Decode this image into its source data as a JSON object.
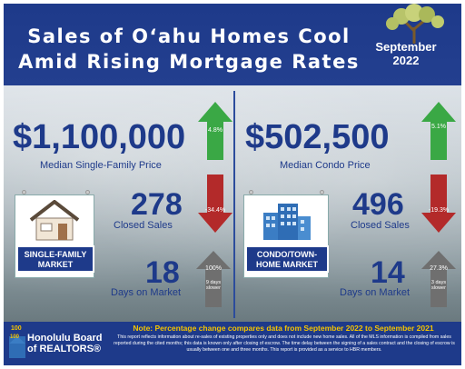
{
  "header": {
    "title_line1": "Sales of O‘ahu Homes Cool",
    "title_line2": "Amid Rising Mortgage Rates",
    "month": "September",
    "year": "2022"
  },
  "single_family": {
    "median_price": "$1,100,000",
    "median_label": "Median Single-Family Price",
    "price_change": "4.8%",
    "closed_sales": "278",
    "closed_label": "Closed Sales",
    "sales_change": "-34.4%",
    "dom": "18",
    "dom_label": "Days on Market",
    "dom_change": "100%",
    "dom_note": "9 days slower",
    "tag_line1": "SINGLE-FAMILY",
    "tag_line2": "MARKET"
  },
  "condo": {
    "median_price": "$502,500",
    "median_label": "Median Condo Price",
    "price_change": "5.1%",
    "closed_sales": "496",
    "closed_label": "Closed Sales",
    "sales_change": "-19.3%",
    "dom": "14",
    "dom_label": "Days on Market",
    "dom_change": "27.3%",
    "dom_note": "3 days slower",
    "tag_line1": "CONDO/TOWN-",
    "tag_line2": "HOME MARKET"
  },
  "footer": {
    "note": "Note: Percentage change compares data from September 2022 to September 2021",
    "fine_print": "This report reflects information about re-sales of existing properties only and does not include new home sales. All of the MLS information is compiled from sales reported during the cited months; this data is known only after closing of escrow. The time delay between the signing of a sales contract and the closing of escrow is usually between one and three months. This report is provided as a service to HBR members.",
    "logo_line1": "Honolulu Board",
    "logo_line2": "of REALTORS®",
    "logo_badge": "100"
  },
  "colors": {
    "navy": "#1e3a8a",
    "up_green": "#3aa845",
    "down_red": "#b32a2a",
    "neutral_gray": "#6f6f6f",
    "note_yellow": "#f5c400"
  }
}
